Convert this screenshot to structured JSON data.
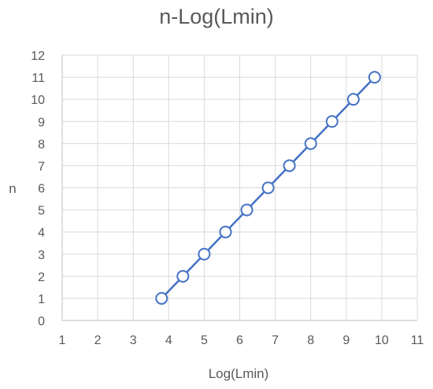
{
  "chart_data": {
    "type": "scatter",
    "title": "n-Log(Lmin)",
    "xlabel": "Log(Lmin)",
    "ylabel": "n",
    "xlim": [
      1,
      11
    ],
    "ylim": [
      0,
      12
    ],
    "xticks": [
      "1",
      "2",
      "3",
      "4",
      "5",
      "6",
      "7",
      "8",
      "9",
      "10",
      "11"
    ],
    "yticks": [
      "0",
      "1",
      "2",
      "3",
      "4",
      "5",
      "6",
      "7",
      "8",
      "9",
      "10",
      "11",
      "12"
    ],
    "grid": true,
    "legend": "none",
    "series": [
      {
        "color": "#4472c4",
        "marker": "open-circle",
        "line": true,
        "points": [
          {
            "x": 3.8,
            "y": 1
          },
          {
            "x": 4.4,
            "y": 2
          },
          {
            "x": 5.0,
            "y": 3
          },
          {
            "x": 5.6,
            "y": 4
          },
          {
            "x": 6.2,
            "y": 5
          },
          {
            "x": 6.8,
            "y": 6
          },
          {
            "x": 7.4,
            "y": 7
          },
          {
            "x": 8.0,
            "y": 8
          },
          {
            "x": 8.6,
            "y": 9
          },
          {
            "x": 9.2,
            "y": 10
          },
          {
            "x": 9.8,
            "y": 11
          }
        ]
      }
    ]
  }
}
